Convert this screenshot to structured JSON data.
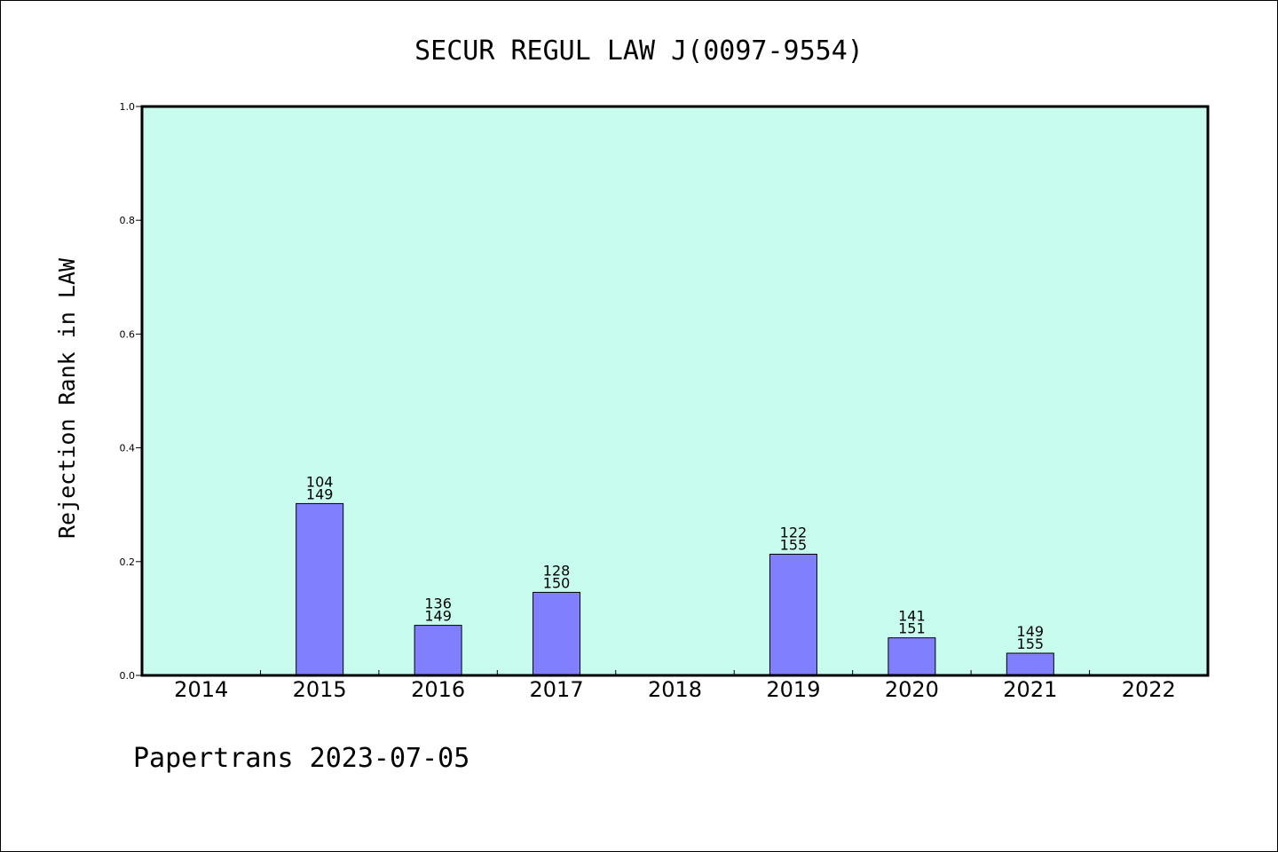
{
  "chart_data": {
    "type": "bar",
    "title": "SECUR REGUL LAW J(0097-9554)",
    "ylabel": "Rejection Rank in LAW",
    "xlabel": "",
    "ylim": [
      0,
      1.0
    ],
    "yticks": [
      "0.0",
      "0.2",
      "0.4",
      "0.6",
      "0.8",
      "1.0"
    ],
    "categories": [
      "2014",
      "2015",
      "2016",
      "2017",
      "2018",
      "2019",
      "2020",
      "2021",
      "2022"
    ],
    "values": [
      0,
      0.302,
      0.088,
      0.146,
      0,
      0.213,
      0.066,
      0.039,
      0
    ],
    "bar_labels": [
      null,
      [
        "104",
        "149"
      ],
      [
        "136",
        "149"
      ],
      [
        "128",
        "150"
      ],
      null,
      [
        "122",
        "155"
      ],
      [
        "141",
        "151"
      ],
      [
        "149",
        "155"
      ],
      null
    ],
    "grid": false,
    "plot_background": "#c8fcee",
    "bar_color": "#8080ff"
  },
  "footer": "Papertrans 2023-07-05"
}
